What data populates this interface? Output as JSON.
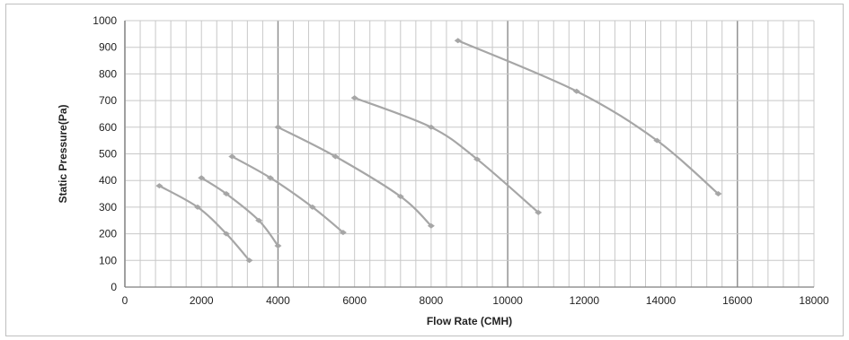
{
  "chart_data": {
    "type": "line",
    "title": "",
    "xlabel": "Flow Rate (CMH)",
    "ylabel": "Static Pressure(Pa)",
    "xlim": [
      0,
      18000
    ],
    "ylim": [
      0,
      1000
    ],
    "xticks": [
      0,
      2000,
      4000,
      6000,
      8000,
      10000,
      12000,
      14000,
      16000,
      18000
    ],
    "yticks": [
      0,
      100,
      200,
      300,
      400,
      500,
      600,
      700,
      800,
      900,
      1000
    ],
    "grid": true,
    "legend": "none",
    "colors": {
      "series": "#a6a6a6",
      "grid_minor": "#c8c8c8",
      "grid_major": "#8c8c8c",
      "axis": "#7f7f7f"
    },
    "series": [
      {
        "points": [
          [
            900,
            380
          ],
          [
            1900,
            300
          ],
          [
            2650,
            200
          ],
          [
            3250,
            100
          ]
        ]
      },
      {
        "points": [
          [
            2000,
            410
          ],
          [
            2650,
            350
          ],
          [
            3500,
            250
          ],
          [
            4000,
            155
          ]
        ]
      },
      {
        "points": [
          [
            2800,
            490
          ],
          [
            3800,
            410
          ],
          [
            4900,
            300
          ],
          [
            5700,
            205
          ]
        ]
      },
      {
        "points": [
          [
            4000,
            600
          ],
          [
            5500,
            490
          ],
          [
            7200,
            340
          ],
          [
            8000,
            230
          ]
        ]
      },
      {
        "points": [
          [
            6000,
            710
          ],
          [
            8000,
            600
          ],
          [
            9200,
            480
          ],
          [
            10800,
            280
          ]
        ]
      },
      {
        "points": [
          [
            8700,
            925
          ],
          [
            11800,
            735
          ],
          [
            13900,
            550
          ],
          [
            15500,
            350
          ]
        ]
      }
    ]
  }
}
